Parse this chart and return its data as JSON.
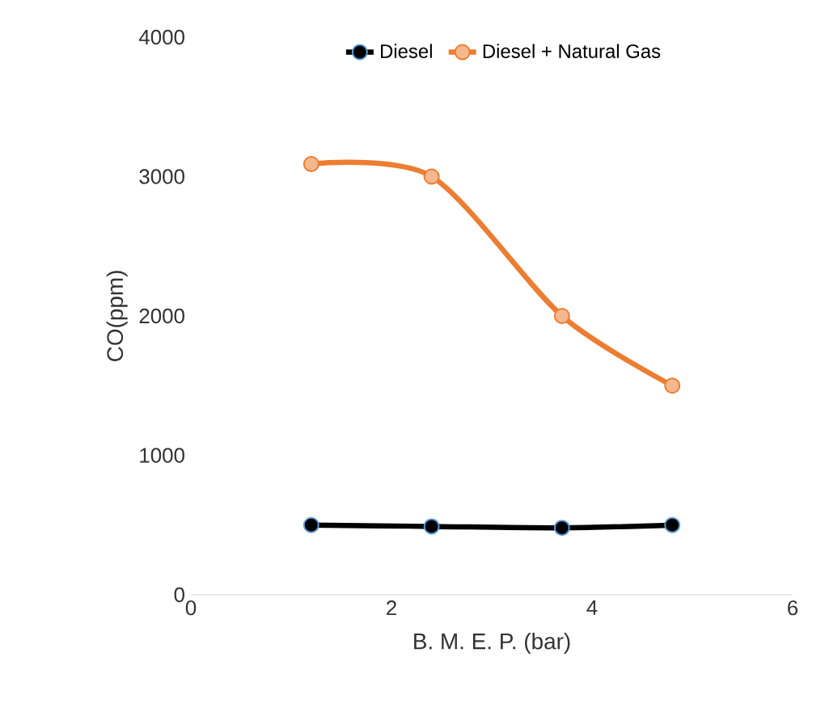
{
  "chart_data": {
    "type": "line",
    "xlabel": "B. M. E. P. (bar)",
    "ylabel": "CO(ppm)",
    "xlim": [
      0,
      6
    ],
    "xticks": [
      0,
      2,
      4,
      6
    ],
    "ylim": [
      0,
      4000
    ],
    "yticks": [
      0,
      1000,
      2000,
      3000,
      4000
    ],
    "grid": false,
    "legend": "top",
    "marker": "circle",
    "line_style": "solid",
    "series": [
      {
        "name": "Diesel",
        "color": "#000000",
        "x": [
          1.2,
          2.4,
          3.7,
          4.8
        ],
        "values": [
          500,
          490,
          480,
          500
        ]
      },
      {
        "name": "Diesel + Natural Gas",
        "color": "#ed7d31",
        "x": [
          1.2,
          2.4,
          3.7,
          4.8
        ],
        "values": [
          3090,
          3000,
          2000,
          1500
        ]
      }
    ]
  }
}
